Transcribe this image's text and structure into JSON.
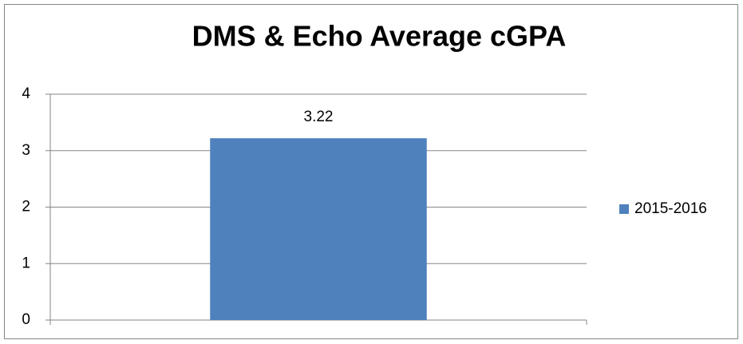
{
  "chart_data": {
    "type": "bar",
    "title": "DMS & Echo Average cGPA",
    "categories": [
      null
    ],
    "series": [
      {
        "name": "2015-2016",
        "color": "#4f81bd",
        "values": [
          3.22
        ]
      }
    ],
    "ylim": [
      0,
      4
    ],
    "yticks": [
      0,
      1,
      2,
      3,
      4
    ],
    "grid": true,
    "legend": "right"
  }
}
